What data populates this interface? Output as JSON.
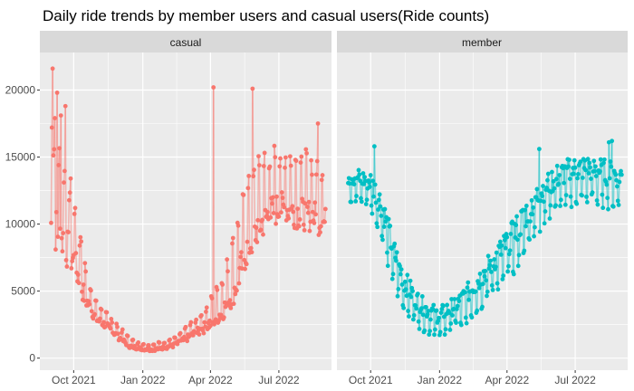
{
  "chart_data": {
    "type": "line",
    "title": "Daily ride trends by member users and casual users(Ride counts)",
    "xlabel": "",
    "ylabel": "",
    "ylim": [
      -900,
      22800
    ],
    "y_ticks": [
      0,
      5000,
      10000,
      15000,
      20000
    ],
    "y_tick_labels": [
      "0",
      "5000",
      "10000",
      "15000",
      "20000"
    ],
    "x_range_days": [
      -15,
      373
    ],
    "x_ticks_days": [
      30,
      122,
      212,
      303
    ],
    "x_tick_labels": [
      "Oct 2021",
      "Jan 2022",
      "Apr 2022",
      "Jul 2022"
    ],
    "x_start_date": "2021-09-01",
    "grid": true,
    "legend": "none",
    "colors": {
      "casual": "#F8766D",
      "member": "#00BFC4",
      "panel": "#EBEBEB",
      "strip": "#D9D9D9",
      "grid": "#FFFFFF"
    },
    "panels": [
      "casual",
      "member"
    ],
    "series": [
      {
        "name": "casual",
        "anchors": [
          [
            0,
            10500,
            5000
          ],
          [
            15,
            9200,
            4500
          ],
          [
            30,
            7500,
            3500
          ],
          [
            45,
            4600,
            1800
          ],
          [
            60,
            3000,
            900
          ],
          [
            75,
            2400,
            700
          ],
          [
            90,
            1600,
            600
          ],
          [
            105,
            900,
            400
          ],
          [
            122,
            700,
            300
          ],
          [
            135,
            650,
            300
          ],
          [
            150,
            800,
            350
          ],
          [
            165,
            1000,
            450
          ],
          [
            180,
            1500,
            650
          ],
          [
            195,
            2000,
            900
          ],
          [
            212,
            2700,
            1300
          ],
          [
            228,
            3600,
            1800
          ],
          [
            245,
            5500,
            3000
          ],
          [
            258,
            8000,
            3500
          ],
          [
            275,
            10000,
            3500
          ],
          [
            290,
            11000,
            3500
          ],
          [
            305,
            11500,
            3200
          ],
          [
            320,
            11200,
            3200
          ],
          [
            335,
            11000,
            3200
          ],
          [
            350,
            10800,
            3200
          ],
          [
            365,
            10300,
            3200
          ]
        ],
        "spikes": [
          [
            1,
            17200
          ],
          [
            2,
            21600
          ],
          [
            5,
            17900
          ],
          [
            8,
            19800
          ],
          [
            13,
            18100
          ],
          [
            19,
            18800
          ],
          [
            26,
            13400
          ],
          [
            32,
            11200
          ],
          [
            40,
            8700
          ],
          [
            216,
            20200
          ],
          [
            268,
            20100
          ],
          [
            355,
            17500
          ]
        ]
      },
      {
        "name": "member",
        "anchors": [
          [
            0,
            13200,
            1800
          ],
          [
            15,
            13000,
            1800
          ],
          [
            30,
            12700,
            2000
          ],
          [
            45,
            10800,
            2500
          ],
          [
            60,
            7500,
            2500
          ],
          [
            75,
            5200,
            2200
          ],
          [
            90,
            4000,
            1800
          ],
          [
            105,
            3200,
            1600
          ],
          [
            122,
            2800,
            1600
          ],
          [
            135,
            3300,
            1600
          ],
          [
            150,
            3800,
            1800
          ],
          [
            165,
            4700,
            2000
          ],
          [
            180,
            5700,
            2200
          ],
          [
            195,
            6800,
            2400
          ],
          [
            212,
            7900,
            2600
          ],
          [
            228,
            9200,
            2800
          ],
          [
            245,
            10800,
            2800
          ],
          [
            260,
            12000,
            2600
          ],
          [
            275,
            12800,
            2400
          ],
          [
            290,
            13300,
            2400
          ],
          [
            305,
            13500,
            2400
          ],
          [
            320,
            13600,
            2400
          ],
          [
            335,
            13400,
            2400
          ],
          [
            350,
            13200,
            2400
          ],
          [
            365,
            13000,
            2400
          ]
        ],
        "spikes": [
          [
            35,
            15800
          ],
          [
            255,
            15600
          ],
          [
            348,
            16100
          ],
          [
            352,
            16200
          ]
        ]
      }
    ]
  }
}
